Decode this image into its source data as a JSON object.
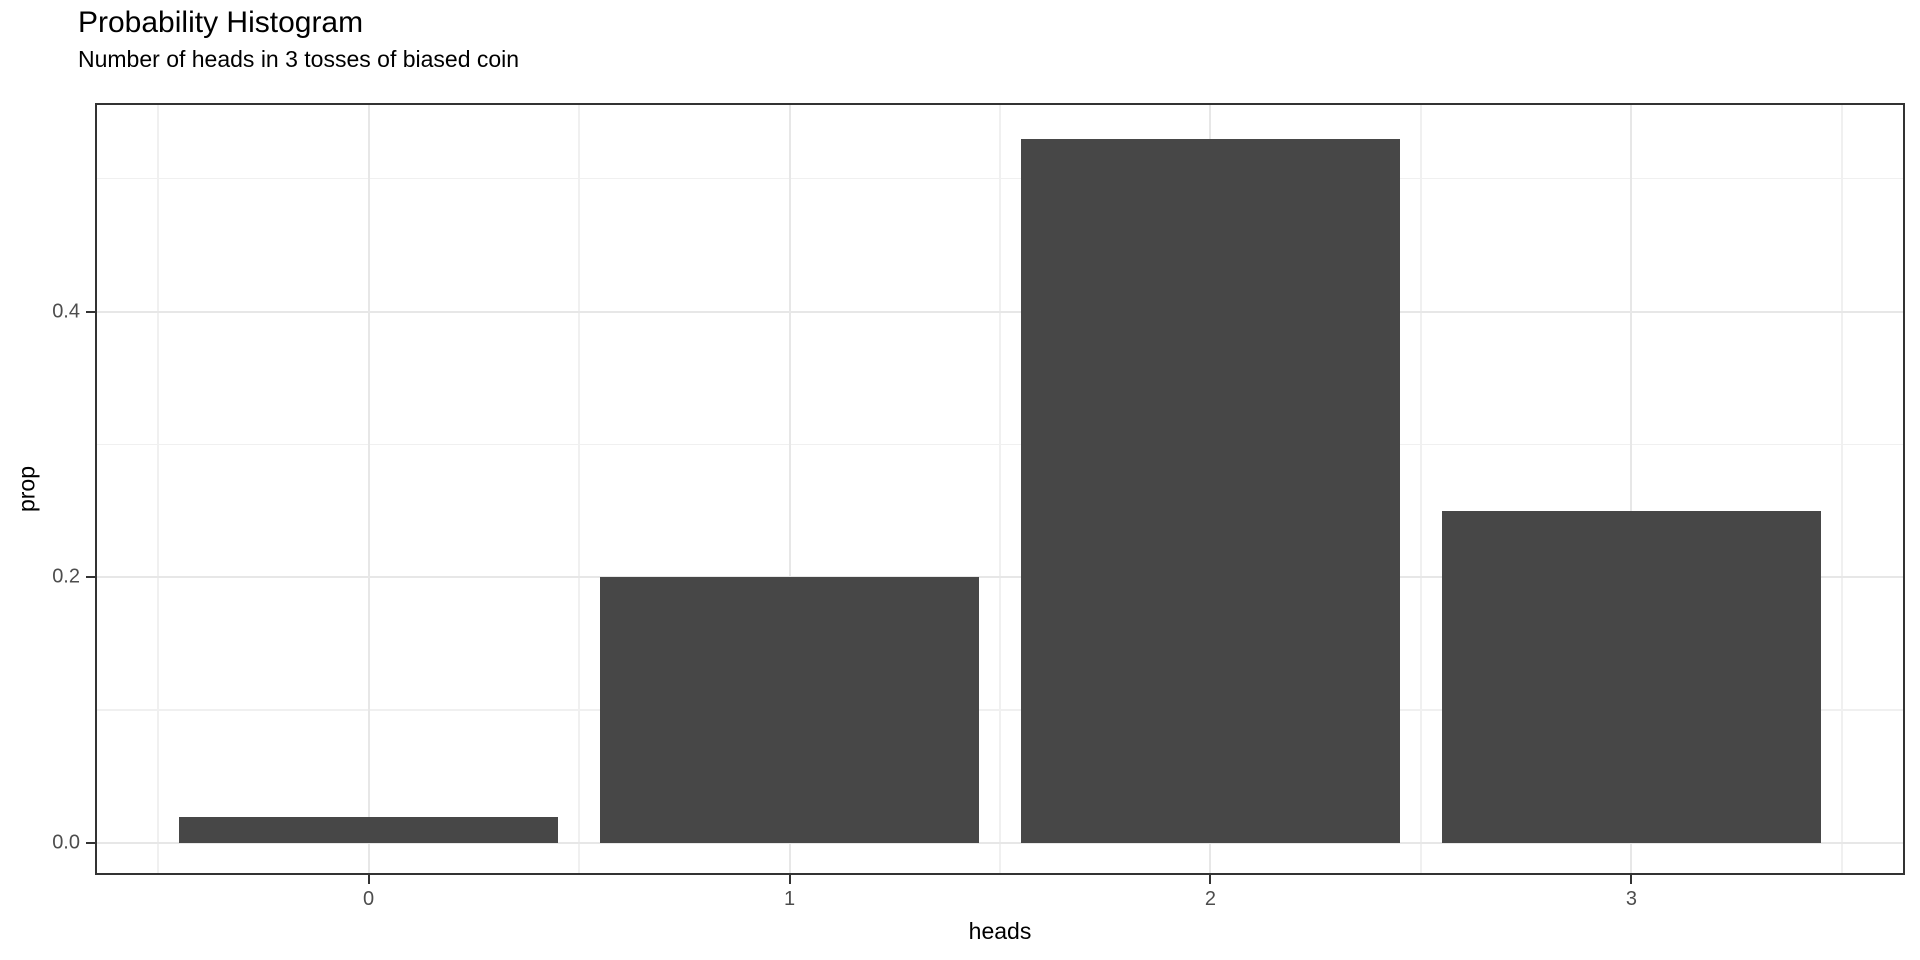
{
  "chart_data": {
    "type": "bar",
    "title": "Probability Histogram",
    "subtitle": "Number of heads in 3 tosses of biased coin",
    "xlabel": "heads",
    "ylabel": "prop",
    "categories": [
      "0",
      "1",
      "2",
      "3"
    ],
    "values": [
      0.02,
      0.2,
      0.53,
      0.25
    ],
    "y_ticks": [
      0.0,
      0.2,
      0.4
    ],
    "y_tick_labels": [
      "0.0",
      "0.2",
      "0.4"
    ],
    "y_minor_gridlines": [
      0.1,
      0.3,
      0.5
    ],
    "ylim": [
      -0.024,
      0.557
    ],
    "grid": "major and minor horizontal + vertical, light gray on white panel",
    "legend": "none",
    "colors": {
      "bar_fill": "#474747",
      "panel_border": "#333333",
      "grid_major": "#e7e7e7",
      "grid_minor": "#f0f0f0",
      "tick_text": "#4d4d4d",
      "title_text": "#000000",
      "background": "#ffffff"
    }
  }
}
